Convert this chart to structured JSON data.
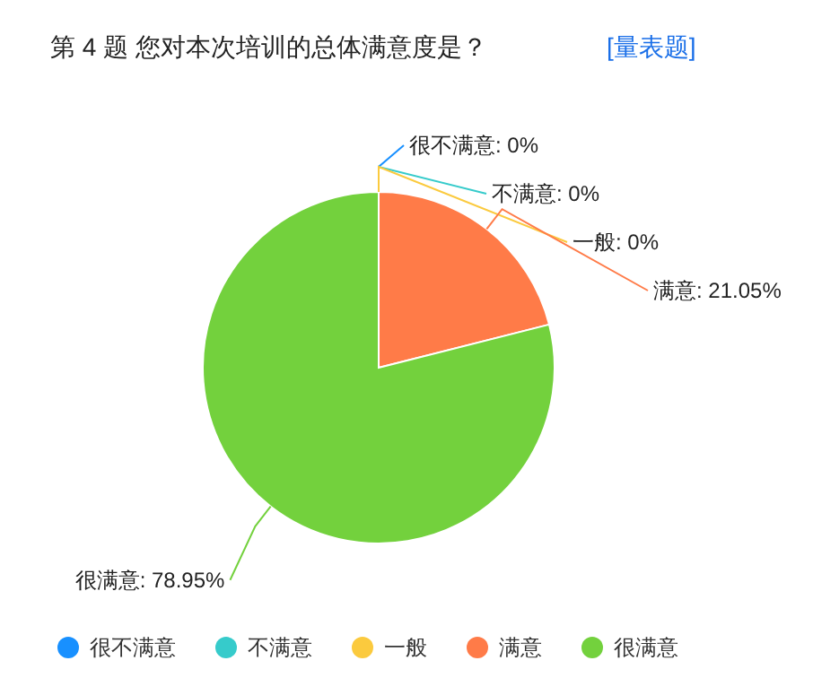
{
  "chart_data": {
    "type": "pie",
    "title": "第 4 题   您对本次培训的总体满意度是？",
    "subtitle": "[量表题]",
    "categories": [
      "很不满意",
      "不满意",
      "一般",
      "满意",
      "很满意"
    ],
    "values": [
      0,
      0,
      0,
      21.05,
      78.95
    ],
    "colors": [
      "#1890ff",
      "#36cbcb",
      "#fbca3e",
      "#ff7b48",
      "#73d13d"
    ],
    "value_labels": [
      ": 0%",
      ": 0%",
      ": 0%",
      ": 21.05%",
      ": 78.95%"
    ],
    "legend": "bottom"
  }
}
